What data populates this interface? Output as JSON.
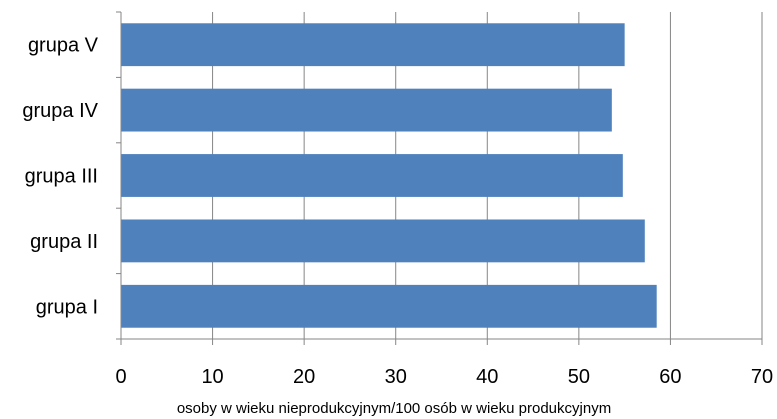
{
  "chart_data": {
    "type": "bar",
    "orientation": "horizontal",
    "categories": [
      "grupa V",
      "grupa IV",
      "grupa III",
      "grupa II",
      "grupa I"
    ],
    "values": [
      55.0,
      53.6,
      54.8,
      57.2,
      58.5
    ],
    "xlabel": "osoby w wieku nieprodukcyjnym/100  osób w wieku produkcyjnym",
    "xlim": [
      0,
      70
    ],
    "xticks": [
      "0",
      "10",
      "20",
      "30",
      "40",
      "50",
      "60",
      "70"
    ],
    "grid": "vertical",
    "legend": "none",
    "bar_color": "#4F81BD"
  }
}
